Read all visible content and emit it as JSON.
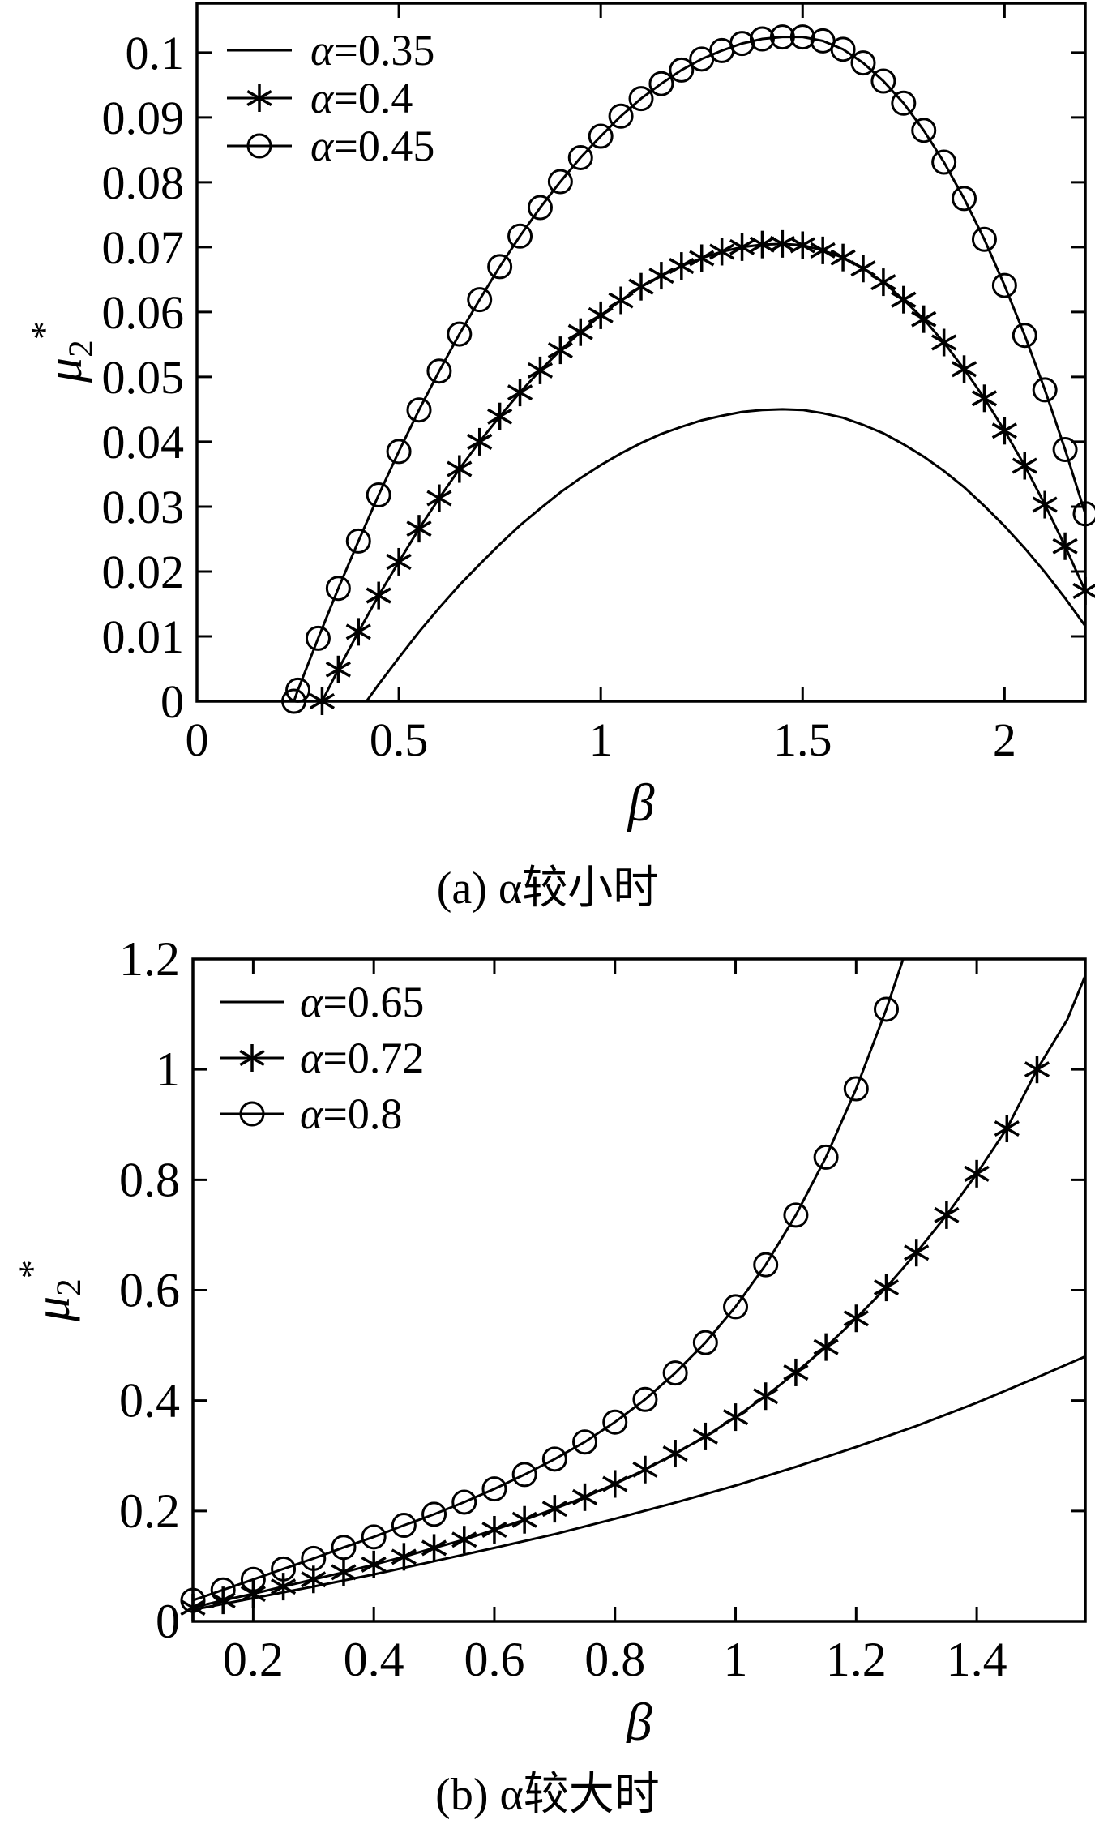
{
  "figure": {
    "background": "#ffffff",
    "foreground": "#000000",
    "captions": {
      "a": "(a) α较小时",
      "b": "(b) α较大时"
    }
  },
  "chart_data": [
    {
      "id": "a",
      "type": "line",
      "caption": "(a) α较小时",
      "xlabel": "β",
      "ylabel": {
        "base": "μ",
        "sub": "2",
        "sup": "*"
      },
      "x_range": [
        0,
        2.2
      ],
      "y_range": [
        0,
        0.1076
      ],
      "grid": false,
      "legend_position": "top-left",
      "x_ticks": [
        {
          "v": 0,
          "label": "0"
        },
        {
          "v": 0.5,
          "label": "0.5"
        },
        {
          "v": 1,
          "label": "1"
        },
        {
          "v": 1.5,
          "label": "1.5"
        },
        {
          "v": 2,
          "label": "2"
        }
      ],
      "y_ticks": [
        {
          "v": 0,
          "label": "0"
        },
        {
          "v": 0.01,
          "label": "0.01"
        },
        {
          "v": 0.02,
          "label": "0.02"
        },
        {
          "v": 0.03,
          "label": "0.03"
        },
        {
          "v": 0.04,
          "label": "0.04"
        },
        {
          "v": 0.05,
          "label": "0.05"
        },
        {
          "v": 0.06,
          "label": "0.06"
        },
        {
          "v": 0.07,
          "label": "0.07"
        },
        {
          "v": 0.08,
          "label": "0.08"
        },
        {
          "v": 0.09,
          "label": "0.09"
        },
        {
          "v": 0.1,
          "label": "0.1"
        }
      ],
      "series": [
        {
          "name": "α=0.35",
          "marker": "none",
          "tail_no_marker": 0,
          "points": [
            [
              0.42,
              0
            ],
            [
              0.45,
              0.0026
            ],
            [
              0.5,
              0.0067
            ],
            [
              0.55,
              0.0107
            ],
            [
              0.6,
              0.0144
            ],
            [
              0.65,
              0.0179
            ],
            [
              0.7,
              0.0211
            ],
            [
              0.75,
              0.0242
            ],
            [
              0.8,
              0.0271
            ],
            [
              0.85,
              0.0297
            ],
            [
              0.9,
              0.0322
            ],
            [
              0.95,
              0.0344
            ],
            [
              1,
              0.0364
            ],
            [
              1.05,
              0.0382
            ],
            [
              1.1,
              0.0398
            ],
            [
              1.15,
              0.0412
            ],
            [
              1.2,
              0.0423
            ],
            [
              1.25,
              0.0433
            ],
            [
              1.3,
              0.044
            ],
            [
              1.35,
              0.0446
            ],
            [
              1.4,
              0.0449
            ],
            [
              1.45,
              0.045
            ],
            [
              1.5,
              0.0449
            ],
            [
              1.55,
              0.0444
            ],
            [
              1.6,
              0.0437
            ],
            [
              1.65,
              0.0426
            ],
            [
              1.7,
              0.0413
            ],
            [
              1.75,
              0.0396
            ],
            [
              1.8,
              0.0377
            ],
            [
              1.85,
              0.0355
            ],
            [
              1.9,
              0.033
            ],
            [
              1.95,
              0.0301
            ],
            [
              2,
              0.027
            ],
            [
              2.05,
              0.0236
            ],
            [
              2.1,
              0.0199
            ],
            [
              2.15,
              0.0159
            ],
            [
              2.2,
              0.0116
            ]
          ]
        },
        {
          "name": "α=0.4",
          "marker": "asterisk",
          "tail_no_marker": 0,
          "points": [
            [
              0.31,
              0
            ],
            [
              0.35,
              0.0049
            ],
            [
              0.4,
              0.0107
            ],
            [
              0.45,
              0.0163
            ],
            [
              0.5,
              0.0215
            ],
            [
              0.55,
              0.0266
            ],
            [
              0.6,
              0.0313
            ],
            [
              0.65,
              0.0358
            ],
            [
              0.7,
              0.04
            ],
            [
              0.75,
              0.0439
            ],
            [
              0.8,
              0.0476
            ],
            [
              0.85,
              0.051
            ],
            [
              0.9,
              0.0541
            ],
            [
              0.95,
              0.0569
            ],
            [
              1,
              0.0595
            ],
            [
              1.05,
              0.0618
            ],
            [
              1.1,
              0.0639
            ],
            [
              1.15,
              0.0656
            ],
            [
              1.2,
              0.0671
            ],
            [
              1.25,
              0.0683
            ],
            [
              1.3,
              0.0693
            ],
            [
              1.35,
              0.07
            ],
            [
              1.4,
              0.0704
            ],
            [
              1.45,
              0.0705
            ],
            [
              1.5,
              0.0703
            ],
            [
              1.55,
              0.0695
            ],
            [
              1.6,
              0.0684
            ],
            [
              1.65,
              0.0667
            ],
            [
              1.7,
              0.0646
            ],
            [
              1.75,
              0.0619
            ],
            [
              1.8,
              0.0589
            ],
            [
              1.85,
              0.0553
            ],
            [
              1.9,
              0.0512
            ],
            [
              1.95,
              0.0467
            ],
            [
              2,
              0.0417
            ],
            [
              2.05,
              0.0363
            ],
            [
              2.1,
              0.0303
            ],
            [
              2.15,
              0.0239
            ],
            [
              2.2,
              0.017
            ]
          ]
        },
        {
          "name": "α=0.45",
          "marker": "circle",
          "tail_no_marker": 0,
          "points": [
            [
              0.24,
              0
            ],
            [
              0.25,
              0.0017
            ],
            [
              0.3,
              0.0097
            ],
            [
              0.35,
              0.0174
            ],
            [
              0.4,
              0.0247
            ],
            [
              0.45,
              0.0318
            ],
            [
              0.5,
              0.0385
            ],
            [
              0.55,
              0.0449
            ],
            [
              0.6,
              0.0509
            ],
            [
              0.65,
              0.0566
            ],
            [
              0.7,
              0.0619
            ],
            [
              0.75,
              0.067
            ],
            [
              0.8,
              0.0717
            ],
            [
              0.85,
              0.0761
            ],
            [
              0.9,
              0.0801
            ],
            [
              0.95,
              0.0838
            ],
            [
              1,
              0.0871
            ],
            [
              1.05,
              0.0902
            ],
            [
              1.1,
              0.0929
            ],
            [
              1.15,
              0.0952
            ],
            [
              1.2,
              0.0973
            ],
            [
              1.25,
              0.099
            ],
            [
              1.3,
              0.1003
            ],
            [
              1.35,
              0.1014
            ],
            [
              1.4,
              0.1021
            ],
            [
              1.45,
              0.1024
            ],
            [
              1.5,
              0.1024
            ],
            [
              1.55,
              0.1018
            ],
            [
              1.6,
              0.1005
            ],
            [
              1.65,
              0.0984
            ],
            [
              1.7,
              0.0956
            ],
            [
              1.75,
              0.0922
            ],
            [
              1.8,
              0.088
            ],
            [
              1.85,
              0.0831
            ],
            [
              1.9,
              0.0775
            ],
            [
              1.95,
              0.0712
            ],
            [
              2,
              0.0641
            ],
            [
              2.05,
              0.0564
            ],
            [
              2.1,
              0.048
            ],
            [
              2.15,
              0.0388
            ],
            [
              2.2,
              0.0289
            ]
          ]
        }
      ]
    },
    {
      "id": "b",
      "type": "line",
      "caption": "(b) α较大时",
      "xlabel": "β",
      "ylabel": {
        "base": "μ",
        "sub": "2",
        "sup": "*"
      },
      "x_range": [
        0.1,
        1.58
      ],
      "y_range": [
        0,
        1.2
      ],
      "grid": false,
      "legend_position": "top-left",
      "x_ticks": [
        {
          "v": 0.2,
          "label": "0.2"
        },
        {
          "v": 0.4,
          "label": "0.4"
        },
        {
          "v": 0.6,
          "label": "0.6"
        },
        {
          "v": 0.8,
          "label": "0.8"
        },
        {
          "v": 1,
          "label": "1"
        },
        {
          "v": 1.2,
          "label": "1.2"
        },
        {
          "v": 1.4,
          "label": "1.4"
        }
      ],
      "y_ticks": [
        {
          "v": 0,
          "label": "0"
        },
        {
          "v": 0.2,
          "label": "0.2"
        },
        {
          "v": 0.4,
          "label": "0.4"
        },
        {
          "v": 0.6,
          "label": "0.6"
        },
        {
          "v": 0.8,
          "label": "0.8"
        },
        {
          "v": 1,
          "label": "1"
        },
        {
          "v": 1.2,
          "label": "1.2"
        }
      ],
      "series": [
        {
          "name": "α=0.65",
          "marker": "none",
          "tail_no_marker": 0,
          "points": [
            [
              0.1,
              0.021
            ],
            [
              0.2,
              0.042
            ],
            [
              0.3,
              0.063
            ],
            [
              0.4,
              0.085
            ],
            [
              0.5,
              0.109
            ],
            [
              0.6,
              0.133
            ],
            [
              0.7,
              0.158
            ],
            [
              0.8,
              0.186
            ],
            [
              0.9,
              0.215
            ],
            [
              1,
              0.246
            ],
            [
              1.1,
              0.28
            ],
            [
              1.2,
              0.316
            ],
            [
              1.3,
              0.354
            ],
            [
              1.4,
              0.396
            ],
            [
              1.5,
              0.442
            ],
            [
              1.58,
              0.48
            ]
          ]
        },
        {
          "name": "α=0.72",
          "marker": "asterisk",
          "tail_no_marker": 2,
          "points": [
            [
              0.1,
              0.025
            ],
            [
              0.15,
              0.038
            ],
            [
              0.2,
              0.05
            ],
            [
              0.25,
              0.063
            ],
            [
              0.3,
              0.076
            ],
            [
              0.35,
              0.089
            ],
            [
              0.4,
              0.103
            ],
            [
              0.45,
              0.117
            ],
            [
              0.5,
              0.133
            ],
            [
              0.55,
              0.148
            ],
            [
              0.6,
              0.166
            ],
            [
              0.65,
              0.184
            ],
            [
              0.7,
              0.204
            ],
            [
              0.75,
              0.225
            ],
            [
              0.8,
              0.249
            ],
            [
              0.85,
              0.275
            ],
            [
              0.9,
              0.304
            ],
            [
              0.95,
              0.335
            ],
            [
              1,
              0.37
            ],
            [
              1.05,
              0.408
            ],
            [
              1.1,
              0.451
            ],
            [
              1.15,
              0.497
            ],
            [
              1.2,
              0.549
            ],
            [
              1.25,
              0.605
            ],
            [
              1.3,
              0.668
            ],
            [
              1.35,
              0.736
            ],
            [
              1.4,
              0.811
            ],
            [
              1.45,
              0.893
            ],
            [
              1.5,
              1.0
            ],
            [
              1.55,
              1.09
            ],
            [
              1.58,
              1.17
            ]
          ]
        },
        {
          "name": "α=0.8",
          "marker": "circle",
          "tail_no_marker": 1,
          "points": [
            [
              0.1,
              0.038
            ],
            [
              0.15,
              0.057
            ],
            [
              0.2,
              0.076
            ],
            [
              0.25,
              0.095
            ],
            [
              0.3,
              0.114
            ],
            [
              0.35,
              0.134
            ],
            [
              0.4,
              0.153
            ],
            [
              0.45,
              0.174
            ],
            [
              0.5,
              0.194
            ],
            [
              0.55,
              0.216
            ],
            [
              0.6,
              0.24
            ],
            [
              0.65,
              0.266
            ],
            [
              0.7,
              0.294
            ],
            [
              0.75,
              0.325
            ],
            [
              0.8,
              0.361
            ],
            [
              0.85,
              0.402
            ],
            [
              0.9,
              0.45
            ],
            [
              0.95,
              0.505
            ],
            [
              1,
              0.57
            ],
            [
              1.05,
              0.646
            ],
            [
              1.1,
              0.736
            ],
            [
              1.15,
              0.841
            ],
            [
              1.2,
              0.965
            ],
            [
              1.25,
              1.109
            ],
            [
              1.278,
              1.2
            ]
          ]
        }
      ]
    }
  ]
}
